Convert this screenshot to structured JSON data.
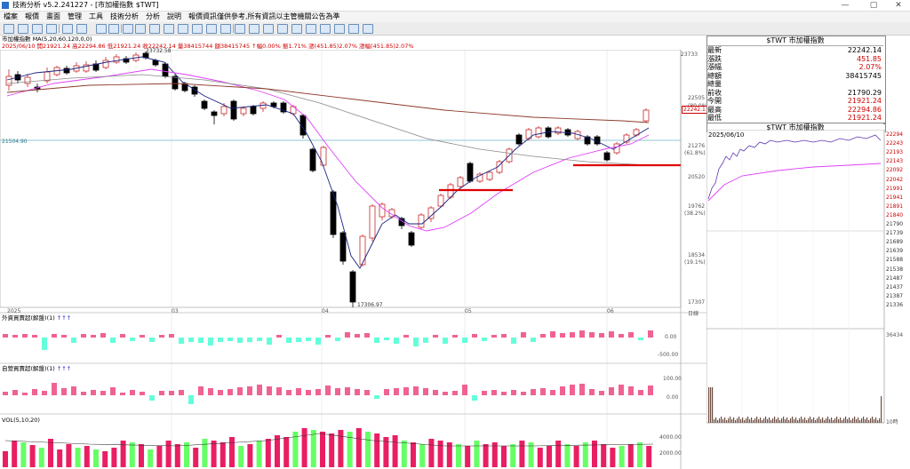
{
  "window": {
    "title": "技術分析 v5.2.241227 - [市加權指數 $TWT]",
    "minimize": "—",
    "maximize": "▢",
    "close": "✕"
  },
  "menu": [
    "檔案",
    "報價",
    "畫面",
    "管理",
    "工具",
    "技術分析",
    "分析",
    "說明",
    "報價資訊僅供參考,所有資訊以主管機關公告為準"
  ],
  "toolbar": {
    "icons": [
      "toolbar-icon",
      "toolbar-icon",
      "toolbar-icon",
      "toolbar-icon",
      "toolbar-icon",
      "toolbar-icon",
      "toolbar-icon",
      "toolbar-icon"
    ]
  },
  "chart_header": {
    "symbol": "市加權指數",
    "ma": "MA(5,20,60,120,0,0)",
    "line2": "2025/06/10 開21921.24 高22294.86 低21921.24 收22242.14 量38415744 額38415745 ↑幅0.00% 振1.71% 漲(451.85)2.07% 漲幅(451.85)2.07%"
  },
  "main_chart": {
    "price_labels": [
      "23733",
      "22505",
      "21276",
      "20520",
      "19762",
      "18534",
      "17307"
    ],
    "pct_labels": [
      "(80.0%)",
      "(61.8%)",
      "(38.2%)",
      "(19.1%)"
    ],
    "last_price_tag": "22242.1",
    "left_hline_label": "21504.90",
    "high_annotation": "23732.58",
    "low_annotation": "17306.97",
    "month_labels": [
      "2025",
      "03",
      "04",
      "05",
      "06"
    ],
    "axis_right_label": "日線"
  },
  "panel1": {
    "label": "外資買賣超(解盤)(1)",
    "axis": [
      "0.00",
      "-500.00"
    ]
  },
  "panel2": {
    "label": "自營買賣超(解盤)(1)",
    "axis": [
      "100.00",
      "0.00"
    ]
  },
  "panel3": {
    "label": "VOL(5,10,20)",
    "axis": [
      "4000.00",
      "2000.00"
    ]
  },
  "quote": {
    "title": "$TWT 市加權指數",
    "rows": [
      {
        "k": "最新",
        "v": "22242.14"
      },
      {
        "k": "漲跌",
        "v": "451.85"
      },
      {
        "k": "漲幅",
        "v": "2.07%"
      },
      {
        "k": "總額",
        "v": "38415745"
      },
      {
        "k": "總量",
        "v": ""
      },
      {
        "k": "前收",
        "v": "21790.29"
      },
      {
        "k": "今開",
        "v": "21921.24"
      },
      {
        "k": "最高",
        "v": "22294.86"
      },
      {
        "k": "最低",
        "v": "21921.24"
      }
    ]
  },
  "intraday": {
    "title": "$TWT 市加權指數",
    "date": "2025/06/10",
    "axis": [
      "22294",
      "22243",
      "22193",
      "22143",
      "22092",
      "22042",
      "21991",
      "21941",
      "21891",
      "21840",
      "21790",
      "21739",
      "21689",
      "21639",
      "21588",
      "21538",
      "21487",
      "21437",
      "21387",
      "21336"
    ],
    "vol_label": "36434",
    "time_label": "10時"
  },
  "chart_data": {
    "type": "candlestick",
    "series": [
      {
        "name": "MA(5,20,60,120,0,0)",
        "values": []
      }
    ],
    "high": 23732.58,
    "low": 17306.97,
    "last": 22242.14,
    "ylim": [
      17307,
      23733
    ]
  }
}
